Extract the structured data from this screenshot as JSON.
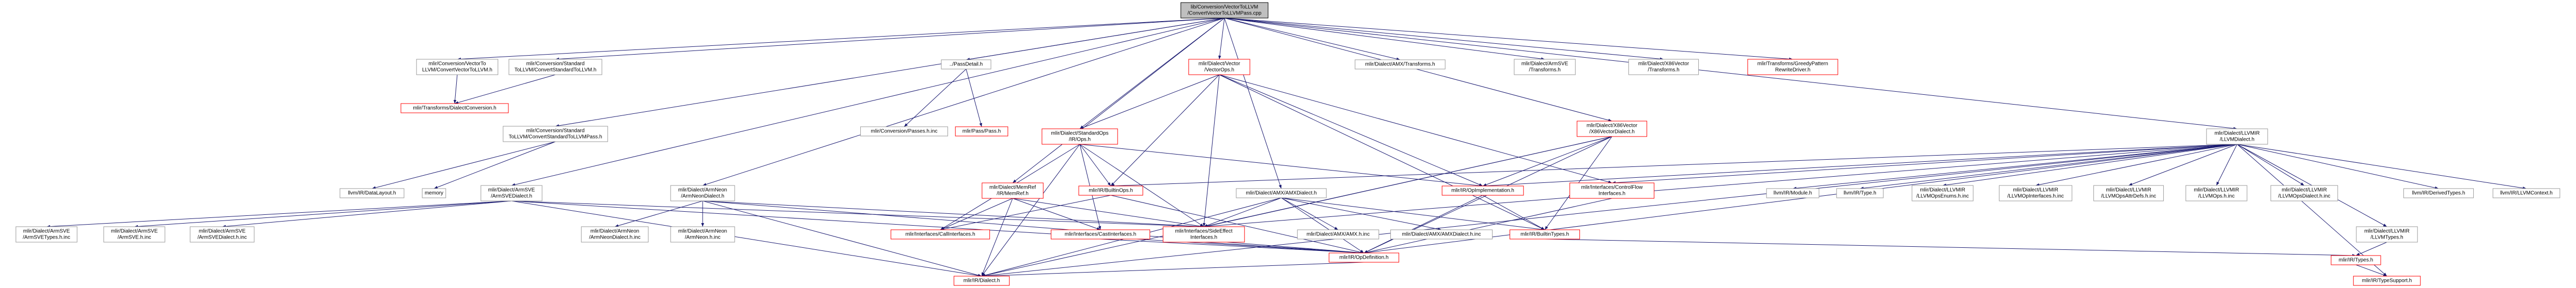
{
  "nodes": [
    {
      "lines": [
        "lib/Conversion/VectorToLLVM",
        "/ConvertVectorToLLVMPass.cpp"
      ]
    },
    {
      "lines": [
        "mlir/Conversion/VectorTo",
        "LLVM/ConvertVectorToLLVM.h"
      ]
    },
    {
      "lines": [
        "mlir/Conversion/Standard",
        "ToLLVM/ConvertStandardToLLVM.h"
      ]
    },
    {
      "lines": [
        "../PassDetail.h"
      ]
    },
    {
      "lines": [
        "mlir/Dialect/Vector",
        "/VectorOps.h"
      ]
    },
    {
      "lines": [
        "mlir/Dialect/AMX/Transforms.h"
      ]
    },
    {
      "lines": [
        "mlir/Dialect/ArmSVE",
        "/Transforms.h"
      ]
    },
    {
      "lines": [
        "mlir/Dialect/X86Vector",
        "/Transforms.h"
      ]
    },
    {
      "lines": [
        "mlir/Transforms/GreedyPattern",
        "RewriteDriver.h"
      ]
    },
    {
      "lines": [
        "mlir/Transforms/DialectConversion.h"
      ]
    },
    {
      "lines": [
        "mlir/Conversion/Standard",
        "ToLLVM/ConvertStandardToLLVMPass.h"
      ]
    },
    {
      "lines": [
        "mlir/Conversion/Passes.h.inc"
      ]
    },
    {
      "lines": [
        "mlir/Pass/Pass.h"
      ]
    },
    {
      "lines": [
        "mlir/Dialect/StandardOps",
        "/IR/Ops.h"
      ]
    },
    {
      "lines": [
        "mlir/Dialect/X86Vector",
        "/X86VectorDialect.h"
      ]
    },
    {
      "lines": [
        "mlir/Dialect/LLVMIR",
        "/LLVMDialect.h"
      ]
    },
    {
      "lines": [
        "llvm/IR/DataLayout.h"
      ]
    },
    {
      "lines": [
        "memory"
      ]
    },
    {
      "lines": [
        "mlir/Dialect/ArmSVE",
        "/ArmSVEDialect.h"
      ]
    },
    {
      "lines": [
        "mlir/Dialect/ArmNeon",
        "/ArmNeonDialect.h"
      ]
    },
    {
      "lines": [
        "mlir/Dialect/MemRef",
        "/IR/MemRef.h"
      ]
    },
    {
      "lines": [
        "mlir/IR/BuiltinOps.h"
      ]
    },
    {
      "lines": [
        "mlir/Dialect/AMX/AMXDialect.h"
      ]
    },
    {
      "lines": [
        "mlir/IR/OpImplementation.h"
      ]
    },
    {
      "lines": [
        "mlir/Interfaces/ControlFlow",
        "Interfaces.h"
      ]
    },
    {
      "lines": [
        "llvm/IR/Module.h"
      ]
    },
    {
      "lines": [
        "llvm/IR/Type.h"
      ]
    },
    {
      "lines": [
        "mlir/Dialect/LLVMIR",
        "/LLVMOpsEnums.h.inc"
      ]
    },
    {
      "lines": [
        "mlir/Dialect/LLVMIR",
        "/LLVMOpInterfaces.h.inc"
      ]
    },
    {
      "lines": [
        "mlir/Dialect/LLVMIR",
        "/LLVMOpsAttrDefs.h.inc"
      ]
    },
    {
      "lines": [
        "mlir/Dialect/LLVMIR",
        "/LLVMOps.h.inc"
      ]
    },
    {
      "lines": [
        "mlir/Dialect/LLVMIR",
        "/LLVMOpsDialect.h.inc"
      ]
    },
    {
      "lines": [
        "llvm/IR/DerivedTypes.h"
      ]
    },
    {
      "lines": [
        "llvm/IR/LLVMContext.h"
      ]
    },
    {
      "lines": [
        "mlir/Dialect/ArmSVE",
        "/ArmSVETypes.h.inc"
      ]
    },
    {
      "lines": [
        "mlir/Dialect/ArmSVE",
        "/ArmSVE.h.inc"
      ]
    },
    {
      "lines": [
        "mlir/Dialect/ArmSVE",
        "/ArmSVEDialect.h.inc"
      ]
    },
    {
      "lines": [
        "mlir/Dialect/ArmNeon",
        "/ArmNeonDialect.h.inc"
      ]
    },
    {
      "lines": [
        "mlir/Dialect/ArmNeon",
        "/ArmNeon.h.inc"
      ]
    },
    {
      "lines": [
        "mlir/Interfaces/CallInterfaces.h"
      ]
    },
    {
      "lines": [
        "mlir/Interfaces/CastInterfaces.h"
      ]
    },
    {
      "lines": [
        "mlir/Interfaces/SideEffect",
        "Interfaces.h"
      ]
    },
    {
      "lines": [
        "mlir/Dialect/AMX/AMX.h.inc"
      ]
    },
    {
      "lines": [
        "mlir/Dialect/AMX/AMXDialect.h.inc"
      ]
    },
    {
      "lines": [
        "mlir/IR/BuiltinTypes.h"
      ]
    },
    {
      "lines": [
        "mlir/Dialect/LLVMIR",
        "/LLVMTypes.h"
      ]
    },
    {
      "lines": [
        "mlir/IR/OpDefinition.h"
      ]
    },
    {
      "lines": [
        "mlir/IR/Types.h"
      ]
    },
    {
      "lines": [
        "mlir/IR/Dialect.h"
      ]
    },
    {
      "lines": [
        "mlir/IR/TypeSupport.h"
      ]
    }
  ]
}
